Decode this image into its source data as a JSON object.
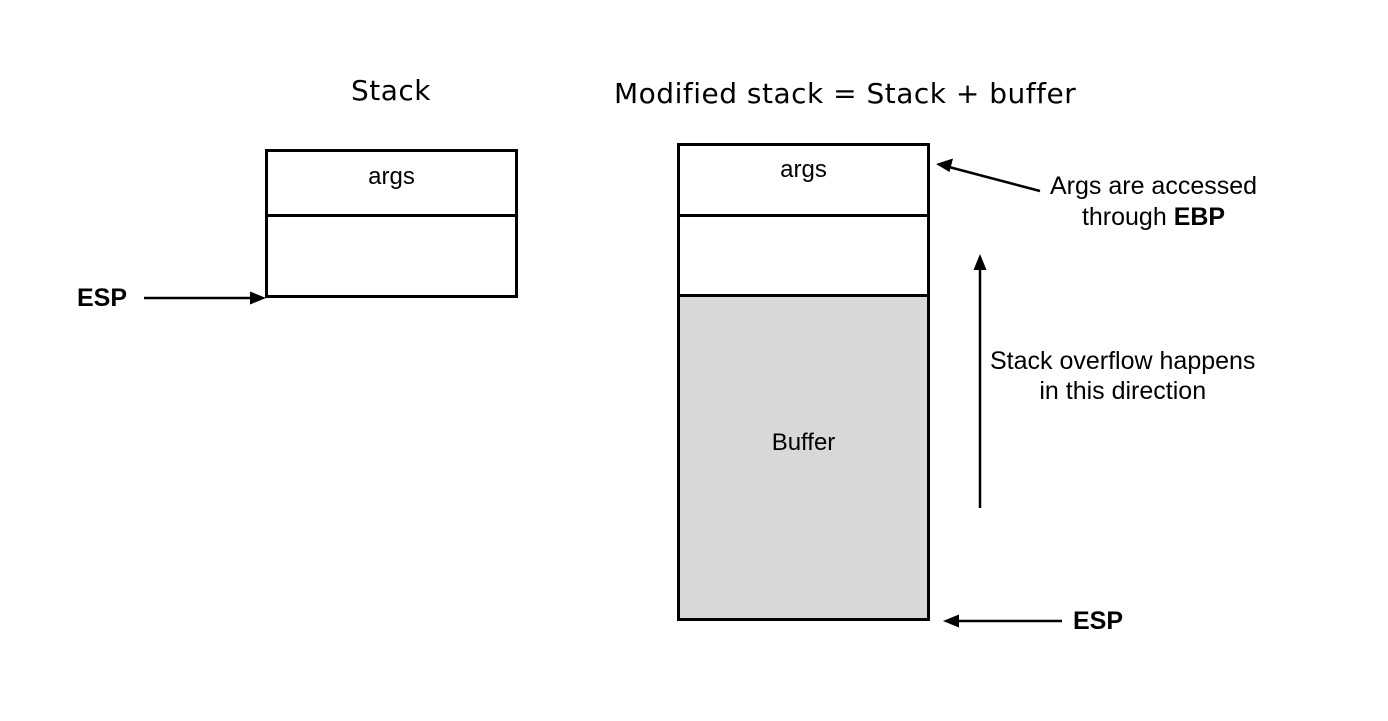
{
  "left": {
    "title": "Stack",
    "top_cell_label": "args",
    "pointer_label": "ESP"
  },
  "right": {
    "title": "Modified stack = Stack + buffer",
    "top_cell_label": "args",
    "buffer_label": "Buffer",
    "pointer_label": "ESP",
    "args_note": {
      "line1": "Args are accessed",
      "line2_prefix": "through",
      "line2_bold": "EBP"
    },
    "overflow_note": {
      "line1": "Stack overflow happens",
      "line2": "in this direction"
    }
  },
  "colors": {
    "buffer_fill": "#d8d8d8",
    "stroke": "#000000"
  }
}
